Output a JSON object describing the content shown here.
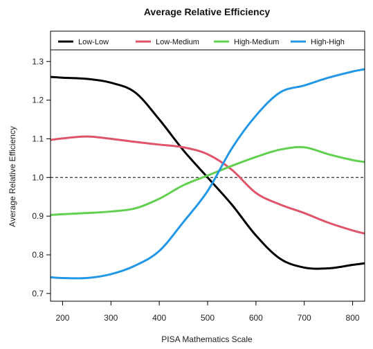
{
  "chart_data": {
    "type": "line",
    "title": "Average Relative Efficiency",
    "xlabel": "PISA Mathematics Scale",
    "ylabel": "Average Relative Efficiency",
    "xlim": [
      175,
      825
    ],
    "ylim": [
      0.68,
      1.33
    ],
    "xticks": [
      200,
      300,
      400,
      500,
      600,
      700,
      800
    ],
    "yticks": [
      0.7,
      0.8,
      0.9,
      1.0,
      1.1,
      1.2,
      1.3
    ],
    "xtick_labels": [
      "200",
      "300",
      "400",
      "500",
      "600",
      "700",
      "800"
    ],
    "ytick_labels": [
      "0.7",
      "0.8",
      "0.9",
      "1.0",
      "1.1",
      "1.2",
      "1.3"
    ],
    "reference_line": {
      "y": 1.0,
      "style": "dashed",
      "color": "#000000"
    },
    "grid": false,
    "legend_position": "top",
    "x": [
      175,
      200,
      250,
      300,
      350,
      400,
      450,
      500,
      550,
      600,
      650,
      700,
      750,
      800,
      825
    ],
    "series": [
      {
        "name": "Low-Low",
        "color": "#000000",
        "values": [
          1.26,
          1.258,
          1.255,
          1.245,
          1.22,
          1.15,
          1.07,
          1.0,
          0.93,
          0.85,
          0.79,
          0.767,
          0.765,
          0.774,
          0.778
        ]
      },
      {
        "name": "Low-Medium",
        "color": "#df536b",
        "values": [
          1.097,
          1.101,
          1.106,
          1.1,
          1.092,
          1.085,
          1.078,
          1.06,
          1.02,
          0.96,
          0.93,
          0.908,
          0.883,
          0.863,
          0.855
        ]
      },
      {
        "name": "High-Medium",
        "color": "#61d04f",
        "values": [
          0.903,
          0.905,
          0.908,
          0.912,
          0.92,
          0.945,
          0.98,
          1.005,
          1.03,
          1.053,
          1.072,
          1.078,
          1.06,
          1.045,
          1.04
        ]
      },
      {
        "name": "High-High",
        "color": "#2297e6",
        "values": [
          0.742,
          0.74,
          0.74,
          0.75,
          0.772,
          0.81,
          0.885,
          0.965,
          1.075,
          1.16,
          1.22,
          1.238,
          1.258,
          1.274,
          1.28
        ]
      }
    ]
  }
}
